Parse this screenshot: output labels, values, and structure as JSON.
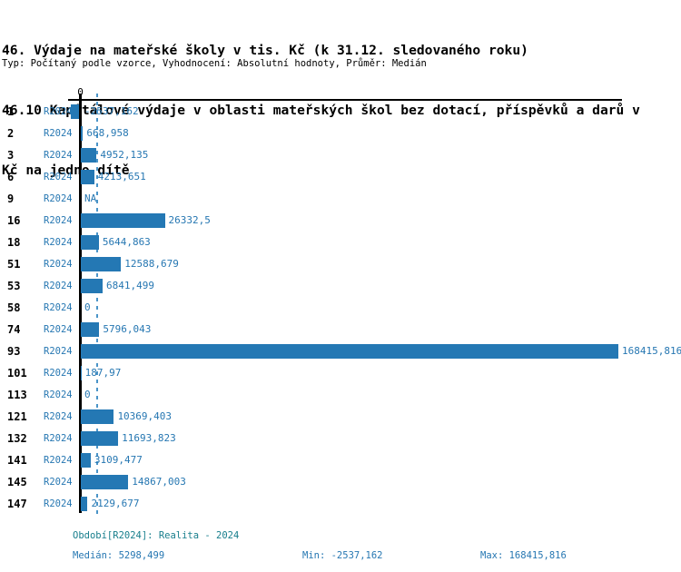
{
  "header": {
    "title_lines": [
      "46. Výdaje na mateřské školy v tis. Kč (k 31.12. sledovaného roku)",
      "46.10 Kapitálové výdaje v oblasti mateřských škol bez dotací, příspěvků a darů v",
      "Kč na jedno dítě"
    ],
    "subtitle": "Typ: Počítaný podle vzorce, Vyhodnocení: Absolutní hodnoty, Průměr: Medián"
  },
  "chart": {
    "axis_zero_label": "0",
    "period_label": "R2024",
    "median_value": 5298.499,
    "rows": [
      {
        "id": "1",
        "period": "R2024",
        "value": -2537.162,
        "value_label": "-2537,162"
      },
      {
        "id": "2",
        "period": "R2024",
        "value": 668.958,
        "value_label": "668,958"
      },
      {
        "id": "3",
        "period": "R2024",
        "value": 4952.135,
        "value_label": "4952,135"
      },
      {
        "id": "6",
        "period": "R2024",
        "value": 4213.651,
        "value_label": "4213,651"
      },
      {
        "id": "9",
        "period": "R2024",
        "value": null,
        "value_label": "NA"
      },
      {
        "id": "16",
        "period": "R2024",
        "value": 26332.5,
        "value_label": "26332,5"
      },
      {
        "id": "18",
        "period": "R2024",
        "value": 5644.863,
        "value_label": "5644,863"
      },
      {
        "id": "51",
        "period": "R2024",
        "value": 12588.679,
        "value_label": "12588,679"
      },
      {
        "id": "53",
        "period": "R2024",
        "value": 6841.499,
        "value_label": "6841,499"
      },
      {
        "id": "58",
        "period": "R2024",
        "value": 0,
        "value_label": "0"
      },
      {
        "id": "74",
        "period": "R2024",
        "value": 5796.043,
        "value_label": "5796,043"
      },
      {
        "id": "93",
        "period": "R2024",
        "value": 168415.816,
        "value_label": "168415,816"
      },
      {
        "id": "101",
        "period": "R2024",
        "value": 187.97,
        "value_label": "187,97"
      },
      {
        "id": "113",
        "period": "R2024",
        "value": 0,
        "value_label": "0"
      },
      {
        "id": "121",
        "period": "R2024",
        "value": 10369.403,
        "value_label": "10369,403"
      },
      {
        "id": "132",
        "period": "R2024",
        "value": 11693.823,
        "value_label": "11693,823"
      },
      {
        "id": "141",
        "period": "R2024",
        "value": 3109.477,
        "value_label": "3109,477"
      },
      {
        "id": "145",
        "period": "R2024",
        "value": 14867.003,
        "value_label": "14867,003"
      },
      {
        "id": "147",
        "period": "R2024",
        "value": 2129.677,
        "value_label": "2129,677"
      }
    ]
  },
  "footer": {
    "period_line": "Období[R2024]: Realita - 2024",
    "median": "Medián: 5298,499",
    "min": "Min: -2537,162",
    "max": "Max: 168415,816"
  },
  "colors": {
    "bar": "#2478b4",
    "blue_text": "#2677b2",
    "median_line": "#4a94c8",
    "teal_text": "#177e8c",
    "axis": "#000000"
  },
  "chart_data": {
    "type": "bar",
    "orientation": "horizontal",
    "title": "46. Výdaje na mateřské školy v tis. Kč (k 31.12. sledovaného roku)",
    "subtitle": "46.10 Kapitálové výdaje v oblasti mateřských škol bez dotací, příspěvků a darů v Kč na jedno dítě",
    "note": "Typ: Počítaný podle vzorce, Vyhodnocení: Absolutní hodnoty, Průměr: Medián",
    "categories": [
      "1",
      "2",
      "3",
      "6",
      "9",
      "16",
      "18",
      "51",
      "53",
      "58",
      "74",
      "93",
      "101",
      "113",
      "121",
      "132",
      "141",
      "145",
      "147"
    ],
    "series": [
      {
        "name": "R2024",
        "values": [
          -2537.162,
          668.958,
          4952.135,
          4213.651,
          null,
          26332.5,
          5644.863,
          12588.679,
          6841.499,
          0,
          5796.043,
          168415.816,
          187.97,
          0,
          10369.403,
          11693.823,
          3109.477,
          14867.003,
          2129.677
        ]
      }
    ],
    "median": 5298.499,
    "min": -2537.162,
    "max": 168415.816,
    "period": "Realita - 2024",
    "xlim": [
      -3000,
      172000
    ],
    "grid": false,
    "legend_position": "none"
  }
}
